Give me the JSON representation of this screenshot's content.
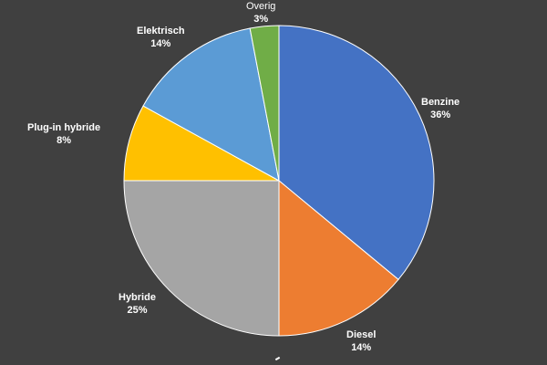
{
  "chart_data": {
    "type": "pie",
    "title": "",
    "slices": [
      {
        "label": "Benzine",
        "value": 36,
        "value_label": "36%",
        "color": "#4472C4"
      },
      {
        "label": "Diesel",
        "value": 14,
        "value_label": "14%",
        "color": "#ED7D31"
      },
      {
        "label": "Hybride",
        "value": 25,
        "value_label": "25%",
        "color": "#A5A5A5"
      },
      {
        "label": "Plug-in hybride",
        "value": 8,
        "value_label": "8%",
        "color": "#FFC000"
      },
      {
        "label": "Elektrisch",
        "value": 14,
        "value_label": "14%",
        "color": "#5B9BD5"
      },
      {
        "label": "Overig",
        "value": 3,
        "value_label": "3%",
        "color": "#70AD47"
      }
    ],
    "start_position": "top (12 o'clock)",
    "direction": "clockwise",
    "legend": "none",
    "data_labels": "outside end, category name and percentage"
  },
  "colors": {
    "background": "#404040",
    "slice_border": "#FFFFFF",
    "label_text": "#FFFFFF"
  }
}
